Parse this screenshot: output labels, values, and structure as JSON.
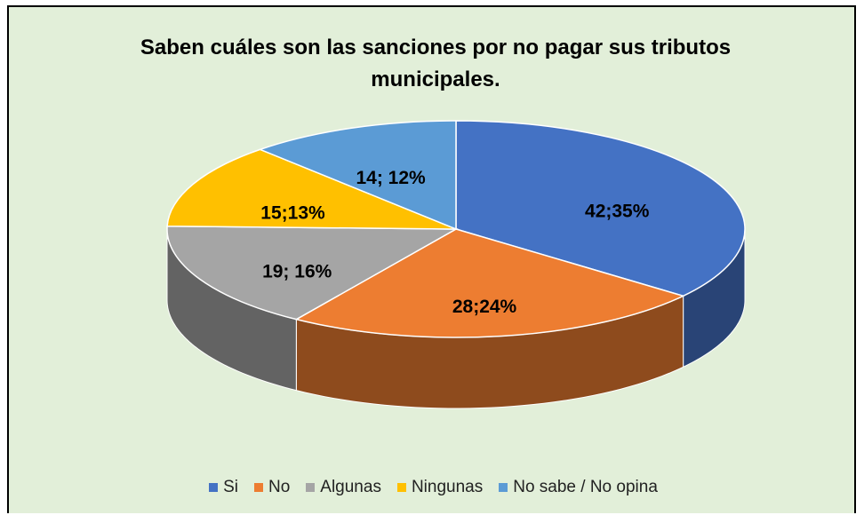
{
  "chart_data": {
    "type": "pie",
    "title": "Saben cuáles son las sanciones por no pagar sus tributos municipales.",
    "categories": [
      "Si",
      "No",
      "Algunas",
      "Ningunas",
      "No sabe / No opina"
    ],
    "values": [
      42,
      28,
      19,
      15,
      14
    ],
    "value_labels": [
      "42;35%",
      "28;24%",
      "19; 16%",
      "15;13%",
      "14; 12%"
    ],
    "colors": [
      "#4472c4",
      "#ed7d31",
      "#a5a5a5",
      "#ffc000",
      "#5b9bd5"
    ],
    "legend": "bottom"
  }
}
